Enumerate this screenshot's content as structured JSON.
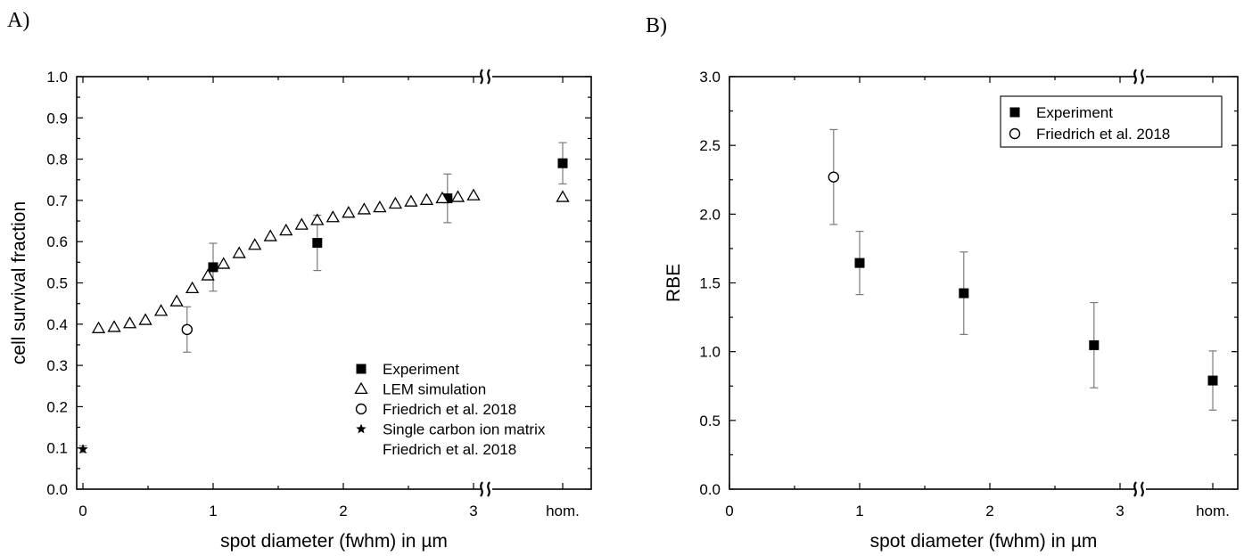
{
  "chart_data": [
    {
      "panel_label": "A)",
      "type": "scatter",
      "xlabel": "spot diameter (fwhm) in µm",
      "ylabel": "cell survival fraction",
      "xlim": [
        0,
        3.4
      ],
      "ylim": [
        0.0,
        1.0
      ],
      "x_ticks": [
        "0",
        "1",
        "2",
        "3",
        "hom."
      ],
      "y_ticks": [
        "0.0",
        "0.1",
        "0.2",
        "0.3",
        "0.4",
        "0.5",
        "0.6",
        "0.7",
        "0.8",
        "0.9",
        "1.0"
      ],
      "axis_break": "between 3 and hom.",
      "legend_position": "bottom-right",
      "legend": [
        "Experiment",
        "LEM simulation",
        "Friedrich et al. 2018",
        "Single carbon ion matrix",
        "Friedrich et al. 2018"
      ],
      "series": [
        {
          "name": "Experiment",
          "marker": "filled-square",
          "points": [
            {
              "x": 1.0,
              "y": 0.538,
              "err": 0.058
            },
            {
              "x": 1.8,
              "y": 0.597,
              "err": 0.067
            },
            {
              "x": 2.8,
              "y": 0.705,
              "err": 0.059
            },
            {
              "x": "hom.",
              "y": 0.79,
              "err": 0.05
            }
          ]
        },
        {
          "name": "LEM simulation",
          "marker": "open-triangle",
          "points": [
            {
              "x": 0.12,
              "y": 0.39
            },
            {
              "x": 0.24,
              "y": 0.393
            },
            {
              "x": 0.36,
              "y": 0.402
            },
            {
              "x": 0.48,
              "y": 0.41
            },
            {
              "x": 0.6,
              "y": 0.432
            },
            {
              "x": 0.72,
              "y": 0.455
            },
            {
              "x": 0.84,
              "y": 0.487
            },
            {
              "x": 0.96,
              "y": 0.518
            },
            {
              "x": 1.08,
              "y": 0.546
            },
            {
              "x": 1.2,
              "y": 0.572
            },
            {
              "x": 1.32,
              "y": 0.592
            },
            {
              "x": 1.44,
              "y": 0.613
            },
            {
              "x": 1.56,
              "y": 0.627
            },
            {
              "x": 1.68,
              "y": 0.641
            },
            {
              "x": 1.8,
              "y": 0.652
            },
            {
              "x": 1.92,
              "y": 0.659
            },
            {
              "x": 2.04,
              "y": 0.67
            },
            {
              "x": 2.16,
              "y": 0.678
            },
            {
              "x": 2.28,
              "y": 0.683
            },
            {
              "x": 2.4,
              "y": 0.692
            },
            {
              "x": 2.52,
              "y": 0.697
            },
            {
              "x": 2.64,
              "y": 0.701
            },
            {
              "x": 2.76,
              "y": 0.705
            },
            {
              "x": 2.88,
              "y": 0.708
            },
            {
              "x": 3.0,
              "y": 0.712
            },
            {
              "x": "hom.",
              "y": 0.708
            }
          ]
        },
        {
          "name": "Friedrich et al. 2018",
          "marker": "open-circle",
          "points": [
            {
              "x": 0.8,
              "y": 0.387,
              "err": 0.055
            }
          ]
        },
        {
          "name": "Single carbon ion matrix Friedrich et al. 2018",
          "marker": "star",
          "points": [
            {
              "x": 0.0,
              "y": 0.097,
              "err": 0.008
            }
          ]
        }
      ]
    },
    {
      "panel_label": "B)",
      "type": "scatter",
      "xlabel": "spot diameter (fwhm) in µm",
      "ylabel": "RBE",
      "xlim": [
        0,
        3.4
      ],
      "ylim": [
        0.0,
        3.0
      ],
      "x_ticks": [
        "0",
        "1",
        "2",
        "3",
        "hom."
      ],
      "y_ticks": [
        "0.0",
        "0.5",
        "1.0",
        "1.5",
        "2.0",
        "2.5",
        "3.0"
      ],
      "axis_break": "between 3 and hom.",
      "legend_position": "top-right",
      "legend": [
        "Experiment",
        "Friedrich et al. 2018"
      ],
      "series": [
        {
          "name": "Experiment",
          "marker": "filled-square",
          "points": [
            {
              "x": 1.0,
              "y": 1.645,
              "err": 0.23
            },
            {
              "x": 1.8,
              "y": 1.425,
              "err": 0.3
            },
            {
              "x": 2.8,
              "y": 1.047,
              "err": 0.31
            },
            {
              "x": "hom.",
              "y": 0.79,
              "err": 0.215
            }
          ]
        },
        {
          "name": "Friedrich et al. 2018",
          "marker": "open-circle",
          "points": [
            {
              "x": 0.8,
              "y": 2.27,
              "err": 0.345
            }
          ]
        }
      ]
    }
  ]
}
